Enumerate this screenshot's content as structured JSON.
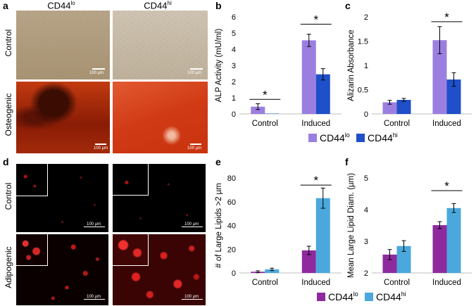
{
  "panel_letters": [
    "a",
    "b",
    "c",
    "d",
    "e",
    "f"
  ],
  "micrographs": {
    "col_headers": [
      {
        "base": "CD44",
        "sup": "lo"
      },
      {
        "base": "CD44",
        "sup": "hi"
      }
    ],
    "a_rows": [
      "Control",
      "Osteogenic"
    ],
    "d_rows": [
      "Control",
      "Adipogenic"
    ],
    "scale_label": "100 µm"
  },
  "chart_data": [
    {
      "id": "b",
      "type": "bar",
      "ylabel": "ALP Activity (mU/ml)",
      "categories": [
        "Control",
        "Induced"
      ],
      "ylim": [
        0,
        6
      ],
      "yticks": [
        0,
        1,
        2,
        3,
        4,
        5,
        6
      ],
      "series": [
        {
          "name": "CD44lo",
          "color": "#9b7fe0",
          "values": [
            0.45,
            4.55
          ],
          "errors": [
            0.18,
            0.38
          ]
        },
        {
          "name": "CD44hi",
          "color": "#1f4fc9",
          "values": [
            0.02,
            2.45
          ],
          "errors": [
            0.0,
            0.35
          ]
        }
      ],
      "significance": [
        {
          "category": 0,
          "label": "*",
          "y": 0.9
        },
        {
          "category": 1,
          "label": "*",
          "y": 5.55
        }
      ],
      "legend": [
        {
          "base": "CD44",
          "sup": "lo"
        },
        {
          "base": "CD44",
          "sup": "hi"
        }
      ]
    },
    {
      "id": "c",
      "type": "bar",
      "ylabel": "Alizarin Absorbance",
      "categories": [
        "Control",
        "Induced"
      ],
      "ylim": [
        0,
        2
      ],
      "yticks": [
        0,
        0.5,
        1,
        1.5,
        2
      ],
      "series": [
        {
          "name": "CD44lo",
          "color": "#9b7fe0",
          "values": [
            0.24,
            1.52
          ],
          "errors": [
            0.04,
            0.28
          ]
        },
        {
          "name": "CD44hi",
          "color": "#1f4fc9",
          "values": [
            0.29,
            0.71
          ],
          "errors": [
            0.03,
            0.14
          ]
        }
      ],
      "significance": [
        {
          "category": 1,
          "label": "*",
          "y": 1.9
        }
      ]
    },
    {
      "id": "e",
      "type": "bar",
      "ylabel": "# of Large Lipids >2 µm",
      "categories": [
        "Control",
        "Induced"
      ],
      "ylim": [
        0,
        80
      ],
      "yticks": [
        0,
        20,
        40,
        60,
        80
      ],
      "series": [
        {
          "name": "CD44lo",
          "color": "#8e2a9e",
          "values": [
            1,
            19
          ],
          "errors": [
            0.8,
            3.5
          ]
        },
        {
          "name": "CD44hi",
          "color": "#4aa8dc",
          "values": [
            3,
            63
          ],
          "errors": [
            1.0,
            8.5
          ]
        }
      ],
      "significance": [
        {
          "category": 1,
          "label": "*",
          "y": 74
        }
      ],
      "legend": [
        {
          "base": "CD44",
          "sup": "lo"
        },
        {
          "base": "CD44",
          "sup": "hi"
        }
      ]
    },
    {
      "id": "f",
      "type": "bar",
      "ylabel": "Mean Large Lipid Diam. (µm)",
      "categories": [
        "Control",
        "Induced"
      ],
      "ylim": [
        2,
        5
      ],
      "yticks": [
        2,
        3,
        4,
        5
      ],
      "series": [
        {
          "name": "CD44lo",
          "color": "#8e2a9e",
          "values": [
            2.58,
            3.51
          ],
          "errors": [
            0.16,
            0.11
          ]
        },
        {
          "name": "CD44hi",
          "color": "#4aa8dc",
          "values": [
            2.85,
            4.05
          ],
          "errors": [
            0.17,
            0.14
          ]
        }
      ],
      "significance": [
        {
          "category": 1,
          "label": "*",
          "y": 4.6
        }
      ]
    }
  ]
}
